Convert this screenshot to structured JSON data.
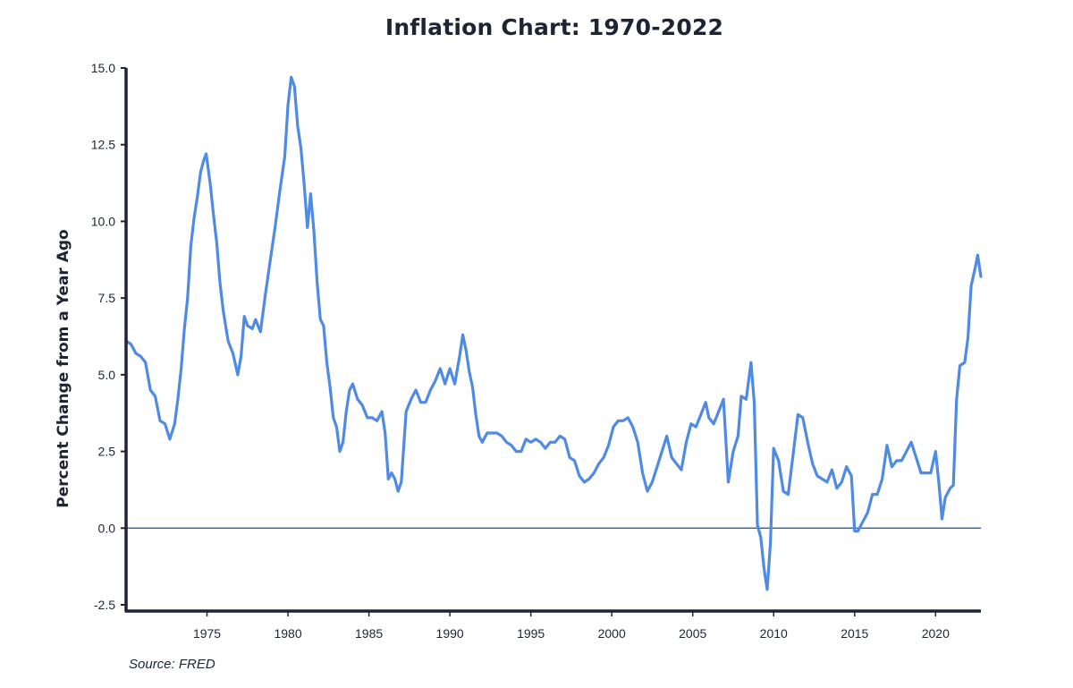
{
  "colors": {
    "line": "#4f8ae5",
    "axis": "#1d2433",
    "zero_line": "#2f4a7a",
    "text": "#1d2433"
  },
  "chart_data": {
    "type": "line",
    "title": "Inflation Chart: 1970-2022",
    "ylabel": "Percent Change from a Year Ago",
    "xlabel": "",
    "source": "Source: FRED",
    "xlim": [
      1970.0,
      2022.8
    ],
    "ylim": [
      -2.5,
      15.0
    ],
    "grid": false,
    "zero_line": true,
    "x_ticks": [
      1975,
      1980,
      1985,
      1990,
      1995,
      2000,
      2005,
      2010,
      2015,
      2020
    ],
    "y_ticks": [
      -2.5,
      0.0,
      2.5,
      5.0,
      7.5,
      10.0,
      12.5,
      15.0
    ],
    "y_tick_labels": [
      "-2.5",
      "0.0",
      "2.5",
      "5.0",
      "7.5",
      "10.0",
      "12.5",
      "15.0"
    ],
    "series": [
      {
        "x": [
          1970.0,
          1970.3,
          1970.6,
          1970.9,
          1971.2,
          1971.5,
          1971.8,
          1972.1,
          1972.4,
          1972.7,
          1973.0,
          1973.2,
          1973.4,
          1973.6,
          1973.8,
          1974.0,
          1974.2,
          1974.4,
          1974.6,
          1974.8,
          1974.95,
          1975.2,
          1975.4,
          1975.6,
          1975.8,
          1976.0,
          1976.3,
          1976.6,
          1976.9,
          1977.1,
          1977.3,
          1977.5,
          1977.8,
          1978.0,
          1978.3,
          1978.6,
          1978.9,
          1979.2,
          1979.5,
          1979.8,
          1980.0,
          1980.2,
          1980.4,
          1980.6,
          1980.8,
          1981.0,
          1981.2,
          1981.4,
          1981.6,
          1981.8,
          1982.0,
          1982.2,
          1982.4,
          1982.6,
          1982.8,
          1983.0,
          1983.2,
          1983.4,
          1983.6,
          1983.8,
          1984.0,
          1984.3,
          1984.6,
          1984.9,
          1985.2,
          1985.5,
          1985.8,
          1986.0,
          1986.2,
          1986.4,
          1986.6,
          1986.8,
          1987.0,
          1987.3,
          1987.6,
          1987.9,
          1988.2,
          1988.5,
          1988.8,
          1989.1,
          1989.4,
          1989.7,
          1990.0,
          1990.3,
          1990.6,
          1990.8,
          1991.0,
          1991.2,
          1991.4,
          1991.6,
          1991.8,
          1992.0,
          1992.3,
          1992.6,
          1992.9,
          1993.2,
          1993.5,
          1993.8,
          1994.1,
          1994.4,
          1994.7,
          1995.0,
          1995.3,
          1995.6,
          1995.9,
          1996.2,
          1996.5,
          1996.8,
          1997.1,
          1997.4,
          1997.7,
          1998.0,
          1998.3,
          1998.6,
          1998.9,
          1999.2,
          1999.5,
          1999.8,
          2000.1,
          2000.4,
          2000.7,
          2001.0,
          2001.3,
          2001.6,
          2001.9,
          2002.2,
          2002.5,
          2002.8,
          2003.1,
          2003.4,
          2003.7,
          2004.0,
          2004.3,
          2004.6,
          2004.9,
          2005.2,
          2005.5,
          2005.8,
          2006.0,
          2006.3,
          2006.6,
          2006.9,
          2007.2,
          2007.5,
          2007.8,
          2008.0,
          2008.3,
          2008.6,
          2008.8,
          2009.0,
          2009.2,
          2009.4,
          2009.6,
          2009.8,
          2010.0,
          2010.3,
          2010.6,
          2010.9,
          2011.2,
          2011.5,
          2011.8,
          2012.1,
          2012.4,
          2012.7,
          2013.0,
          2013.3,
          2013.6,
          2013.9,
          2014.2,
          2014.5,
          2014.8,
          2015.0,
          2015.2,
          2015.5,
          2015.8,
          2016.1,
          2016.4,
          2016.7,
          2017.0,
          2017.3,
          2017.6,
          2017.9,
          2018.2,
          2018.5,
          2018.8,
          2019.1,
          2019.4,
          2019.7,
          2020.0,
          2020.2,
          2020.4,
          2020.6,
          2020.9,
          2021.1,
          2021.3,
          2021.5,
          2021.8,
          2022.0,
          2022.2,
          2022.45,
          2022.6,
          2022.8
        ],
        "values": [
          6.1,
          6.0,
          5.7,
          5.6,
          5.4,
          4.5,
          4.3,
          3.5,
          3.4,
          2.9,
          3.4,
          4.2,
          5.2,
          6.5,
          7.5,
          9.2,
          10.1,
          10.8,
          11.6,
          12.0,
          12.2,
          11.2,
          10.2,
          9.3,
          8.0,
          7.1,
          6.1,
          5.7,
          5.0,
          5.6,
          6.9,
          6.6,
          6.5,
          6.8,
          6.4,
          7.6,
          8.7,
          9.8,
          11.0,
          12.1,
          13.8,
          14.7,
          14.4,
          13.1,
          12.4,
          11.2,
          9.8,
          10.9,
          9.7,
          8.0,
          6.8,
          6.6,
          5.4,
          4.6,
          3.6,
          3.3,
          2.5,
          2.8,
          3.8,
          4.5,
          4.7,
          4.2,
          4.0,
          3.6,
          3.6,
          3.5,
          3.8,
          3.1,
          1.6,
          1.8,
          1.6,
          1.2,
          1.5,
          3.8,
          4.2,
          4.5,
          4.1,
          4.1,
          4.5,
          4.8,
          5.2,
          4.7,
          5.2,
          4.7,
          5.6,
          6.3,
          5.8,
          5.1,
          4.6,
          3.7,
          3.0,
          2.8,
          3.1,
          3.1,
          3.1,
          3.0,
          2.8,
          2.7,
          2.5,
          2.5,
          2.9,
          2.8,
          2.9,
          2.8,
          2.6,
          2.8,
          2.8,
          3.0,
          2.9,
          2.3,
          2.2,
          1.7,
          1.5,
          1.6,
          1.8,
          2.1,
          2.3,
          2.7,
          3.3,
          3.5,
          3.5,
          3.6,
          3.3,
          2.8,
          1.8,
          1.2,
          1.5,
          2.0,
          2.5,
          3.0,
          2.3,
          2.1,
          1.9,
          2.8,
          3.4,
          3.3,
          3.7,
          4.1,
          3.6,
          3.4,
          3.8,
          4.2,
          1.5,
          2.5,
          3.0,
          4.3,
          4.2,
          5.4,
          4.1,
          0.1,
          -0.3,
          -1.3,
          -2.0,
          -0.5,
          2.6,
          2.2,
          1.2,
          1.1,
          2.4,
          3.7,
          3.6,
          2.8,
          2.1,
          1.7,
          1.6,
          1.5,
          1.9,
          1.3,
          1.5,
          2.0,
          1.7,
          -0.1,
          -0.1,
          0.2,
          0.5,
          1.1,
          1.1,
          1.6,
          2.7,
          2.0,
          2.2,
          2.2,
          2.5,
          2.8,
          2.3,
          1.8,
          1.8,
          1.8,
          2.5,
          1.5,
          0.3,
          1.0,
          1.3,
          1.4,
          4.2,
          5.3,
          5.4,
          6.2,
          7.9,
          8.5,
          8.9,
          8.2
        ]
      }
    ]
  }
}
